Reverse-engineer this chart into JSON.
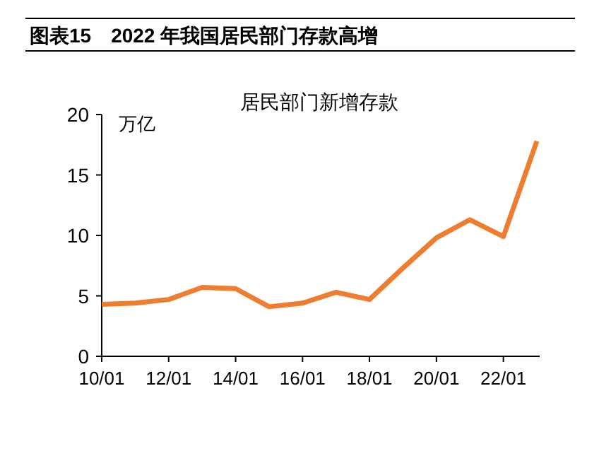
{
  "chart_data": {
    "type": "line",
    "title": "图表15　2022 年我国居民部门存款高增",
    "subtitle": "居民部门新增存款",
    "ylabel": "万亿",
    "categories": [
      "10/01",
      null,
      "12/01",
      null,
      "14/01",
      null,
      "16/01",
      null,
      "18/01",
      null,
      "20/01",
      null,
      "22/01",
      null
    ],
    "series": [
      {
        "color": "#ed7d31",
        "values": [
          4.3,
          4.4,
          4.7,
          5.7,
          5.6,
          4.1,
          4.4,
          5.3,
          4.7,
          7.3,
          9.8,
          11.3,
          9.9,
          17.8
        ]
      }
    ],
    "ylim": [
      0,
      20
    ],
    "yticks": [
      0,
      5,
      10,
      15,
      20
    ],
    "grid": false,
    "marker": "none",
    "line_style": "solid"
  }
}
